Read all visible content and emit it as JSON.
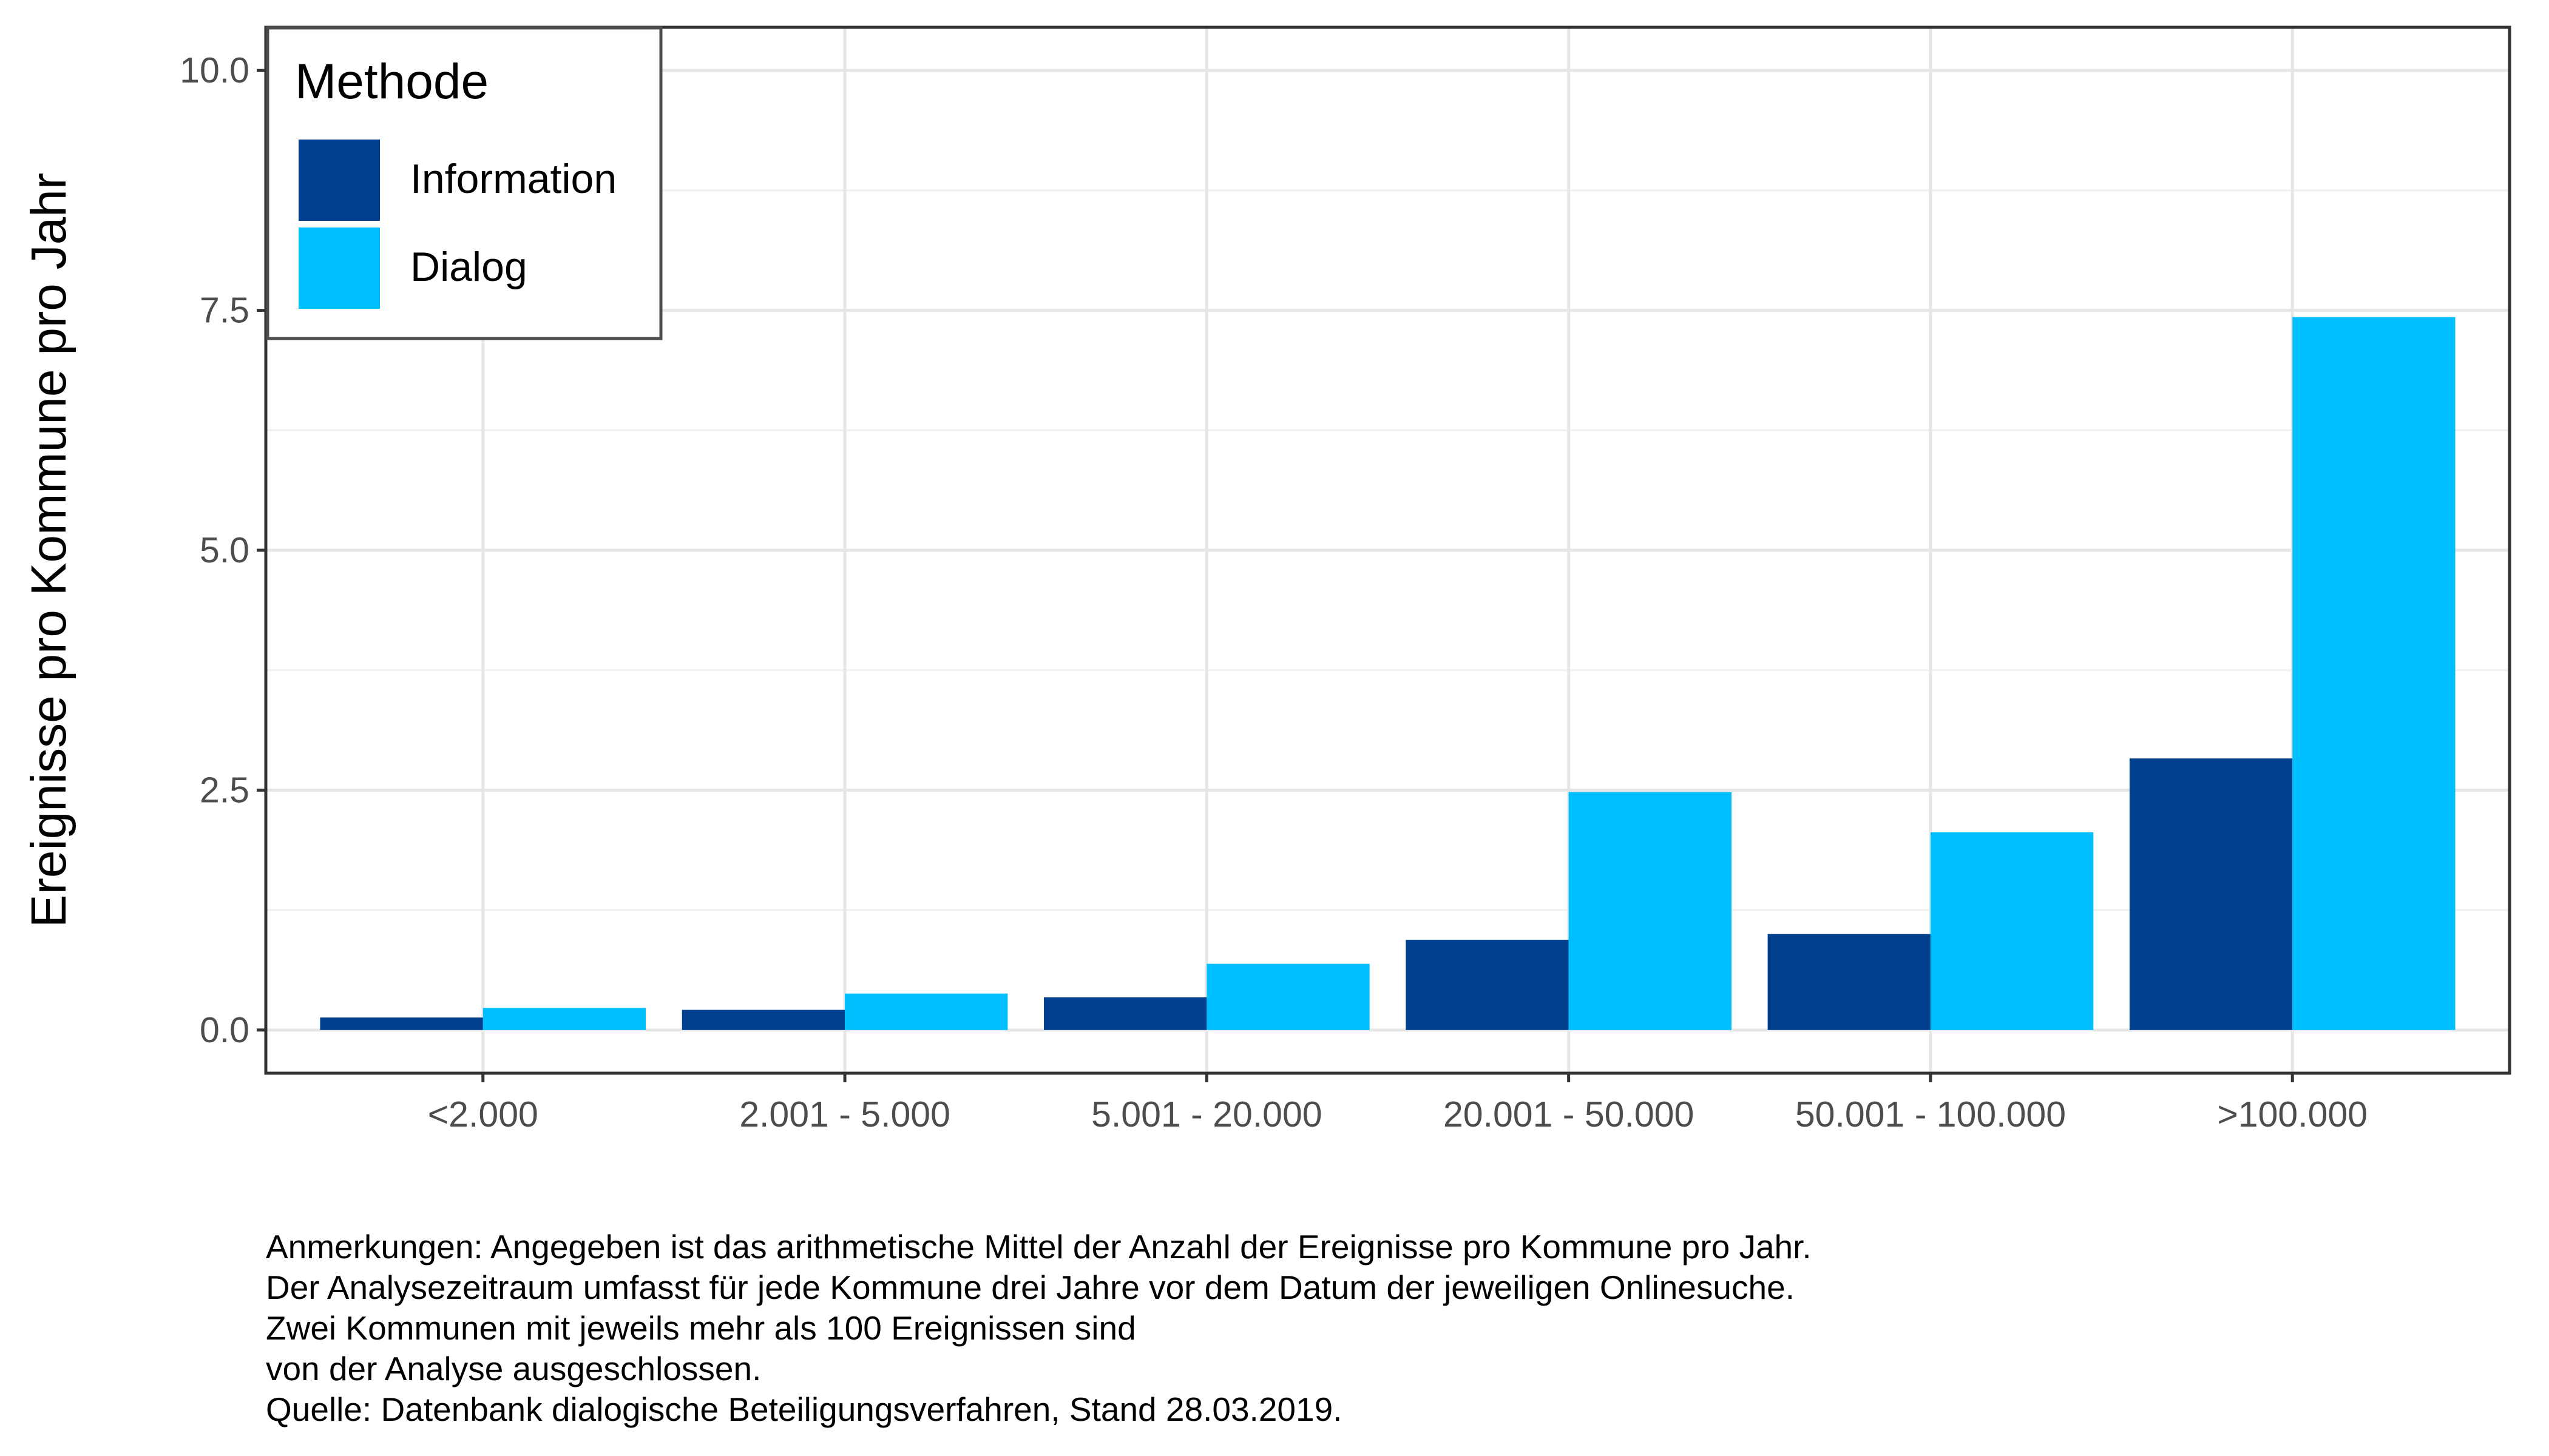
{
  "chart_data": {
    "type": "bar",
    "title": "",
    "xlabel": "",
    "ylabel": "Ereignisse pro Kommune pro Jahr",
    "categories": [
      "<2.000",
      "2.001 - 5.000",
      "5.001 - 20.000",
      "20.001 - 50.000",
      "50.001 - 100.000",
      ">100.000"
    ],
    "series": [
      {
        "name": "Information",
        "color": "#00408F",
        "values": [
          0.13,
          0.21,
          0.34,
          0.94,
          1.0,
          2.83
        ]
      },
      {
        "name": "Dialog",
        "color": "#00BFFF",
        "values": [
          0.23,
          0.38,
          0.69,
          2.48,
          2.06,
          7.43
        ]
      }
    ],
    "ylim": [
      -0.45,
      10.45
    ],
    "yticks": [
      0,
      2.5,
      5,
      7.5,
      10
    ],
    "ytick_labels": [
      "0.0",
      "2.5",
      "5.0",
      "7.5",
      "10.0"
    ],
    "grid": true,
    "legend": {
      "title": "Methode",
      "position": "top-left"
    }
  },
  "caption": {
    "lines": [
      "Anmerkungen: Angegeben ist das arithmetische Mittel der Anzahl der Ereignisse pro Kommune pro Jahr.",
      "Der Analysezeitraum umfasst für jede Kommune drei Jahre vor dem Datum der jeweiligen Onlinesuche.",
      "Zwei Kommunen mit jeweils mehr als 100 Ereignissen sind",
      "von der Analyse ausgeschlossen.",
      "Quelle: Datenbank dialogische Beteiligungsverfahren, Stand 28.03.2019."
    ]
  }
}
